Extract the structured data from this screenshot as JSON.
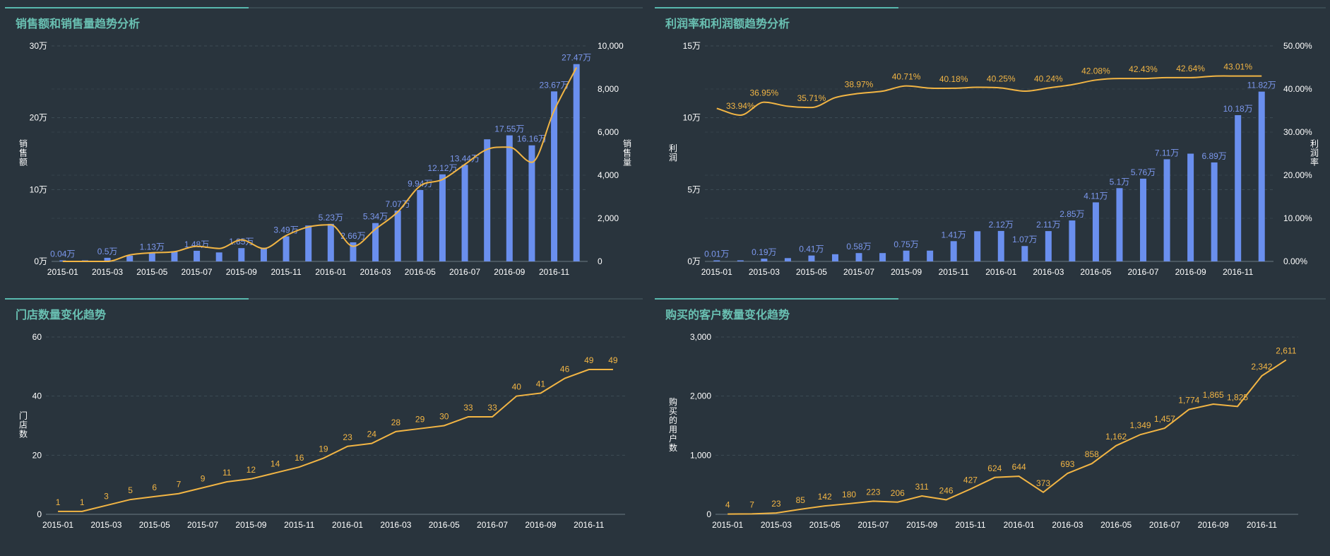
{
  "colors": {
    "bar": "#6a8fee",
    "line": "#f2b544",
    "text": "#ffffff",
    "grid": "#3e4c55",
    "title": "#69c0b2",
    "bar_label": "#7c98ee",
    "line_label": "#f2b544"
  },
  "panels": {
    "p1": {
      "title": "销售额和销售量趋势分析"
    },
    "p2": {
      "title": "利润率和利润额趋势分析"
    },
    "p3": {
      "title": "门店数量变化趋势"
    },
    "p4": {
      "title": "购买的客户数量变化趋势"
    }
  },
  "chart_data": [
    {
      "id": "p1",
      "type": "bar+line",
      "title": "销售额和销售量趋势分析",
      "categories": [
        "2015-01",
        "2015-02",
        "2015-03",
        "2015-04",
        "2015-05",
        "2015-06",
        "2015-07",
        "2015-08",
        "2015-09",
        "2015-10",
        "2015-11",
        "2015-12",
        "2016-01",
        "2016-02",
        "2016-03",
        "2016-04",
        "2016-05",
        "2016-06",
        "2016-07",
        "2016-08",
        "2016-09",
        "2016-10",
        "2016-11",
        "2016-12"
      ],
      "x_tick_labels": [
        "2015-01",
        "2015-03",
        "2015-05",
        "2015-07",
        "2015-09",
        "2015-11",
        "2016-01",
        "2016-03",
        "2016-05",
        "2016-07",
        "2016-09",
        "2016-11"
      ],
      "ylabel": "销售额",
      "y2label": "销售量",
      "ylim": [
        0,
        300000
      ],
      "y2lim": [
        0,
        10000
      ],
      "y_ticks": [
        "0万",
        "10万",
        "20万",
        "30万"
      ],
      "y2_ticks": [
        "0",
        "2,000",
        "4,000",
        "6,000",
        "8,000",
        "10,000"
      ],
      "grid": true,
      "series": [
        {
          "type": "bar",
          "values": [
            400,
            1000,
            5000,
            8000,
            11300,
            14000,
            14800,
            12500,
            18500,
            19000,
            34900,
            50000,
            52300,
            26600,
            53400,
            70700,
            99400,
            121200,
            134400,
            170000,
            175500,
            161600,
            236700,
            274700
          ],
          "labels": [
            "0.04万",
            "",
            "0.5万",
            "",
            "1.13万",
            "",
            "1.48万",
            "",
            "1.85万",
            "",
            "3.49万",
            "",
            "5.23万",
            "2.66万",
            "5.34万",
            "7.07万",
            "9.94万",
            "12.12万",
            "13.44万",
            "",
            "17.55万",
            "16.16万",
            "23.67万",
            "27.47万"
          ]
        },
        {
          "type": "line",
          "values": [
            0,
            0,
            0,
            300,
            400,
            450,
            700,
            600,
            1000,
            600,
            1200,
            1600,
            1700,
            700,
            1500,
            2300,
            3500,
            3800,
            4500,
            5200,
            5300,
            4600,
            7000,
            9000
          ]
        }
      ]
    },
    {
      "id": "p2",
      "type": "bar+line",
      "title": "利润率和利润额趋势分析",
      "categories": [
        "2015-01",
        "2015-02",
        "2015-03",
        "2015-04",
        "2015-05",
        "2015-06",
        "2015-07",
        "2015-08",
        "2015-09",
        "2015-10",
        "2015-11",
        "2015-12",
        "2016-01",
        "2016-02",
        "2016-03",
        "2016-04",
        "2016-05",
        "2016-06",
        "2016-07",
        "2016-08",
        "2016-09",
        "2016-10",
        "2016-11",
        "2016-12"
      ],
      "x_tick_labels": [
        "2015-01",
        "2015-03",
        "2015-05",
        "2015-07",
        "2015-09",
        "2015-11",
        "2016-01",
        "2016-03",
        "2016-05",
        "2016-07",
        "2016-09",
        "2016-11"
      ],
      "ylabel": "利润",
      "y2label": "利润率",
      "ylim": [
        0,
        150000
      ],
      "y2lim": [
        0,
        0.5
      ],
      "y_ticks": [
        "0万",
        "5万",
        "10万",
        "15万"
      ],
      "y2_ticks": [
        "0.00%",
        "10.00%",
        "20.00%",
        "30.00%",
        "40.00%",
        "50.00%"
      ],
      "grid": true,
      "series": [
        {
          "type": "bar",
          "values": [
            100,
            100,
            1900,
            2300,
            4100,
            5000,
            5800,
            5800,
            7500,
            7500,
            14100,
            21000,
            21200,
            10700,
            21100,
            28500,
            41100,
            51000,
            57600,
            71100,
            75000,
            68900,
            101800,
            118200
          ],
          "labels": [
            "0.01万",
            "",
            "0.19万",
            "",
            "0.41万",
            "",
            "0.58万",
            "",
            "0.75万",
            "",
            "1.41万",
            "",
            "2.12万",
            "1.07万",
            "2.11万",
            "2.85万",
            "4.11万",
            "5.1万",
            "5.76万",
            "7.11万",
            "",
            "6.89万",
            "10.18万",
            "11.82万"
          ]
        },
        {
          "type": "line",
          "values": [
            0.355,
            0.3394,
            0.3695,
            0.36,
            0.3571,
            0.38,
            0.3897,
            0.395,
            0.4071,
            0.402,
            0.4018,
            0.404,
            0.4025,
            0.395,
            0.4024,
            0.41,
            0.4208,
            0.4243,
            0.4243,
            0.4264,
            0.4264,
            0.43,
            0.4301,
            0.4301
          ],
          "labels": [
            "",
            "33.94%",
            "36.95%",
            "",
            "35.71%",
            "",
            "38.97%",
            "",
            "40.71%",
            "",
            "40.18%",
            "",
            "40.25%",
            "",
            "40.24%",
            "",
            "42.08%",
            "",
            "42.43%",
            "",
            "42.64%",
            "",
            "43.01%",
            ""
          ]
        }
      ]
    },
    {
      "id": "p3",
      "type": "line",
      "title": "门店数量变化趋势",
      "categories": [
        "2015-01",
        "2015-02",
        "2015-03",
        "2015-04",
        "2015-05",
        "2015-06",
        "2015-07",
        "2015-08",
        "2015-09",
        "2015-10",
        "2015-11",
        "2015-12",
        "2016-01",
        "2016-02",
        "2016-03",
        "2016-04",
        "2016-05",
        "2016-06",
        "2016-07",
        "2016-08",
        "2016-09",
        "2016-10",
        "2016-11",
        "2016-12"
      ],
      "x_tick_labels": [
        "2015-01",
        "2015-03",
        "2015-05",
        "2015-07",
        "2015-09",
        "2015-11",
        "2016-01",
        "2016-03",
        "2016-05",
        "2016-07",
        "2016-09",
        "2016-11"
      ],
      "ylabel": "门店数",
      "ylim": [
        0,
        60
      ],
      "y_ticks": [
        "0",
        "20",
        "40",
        "60"
      ],
      "grid": true,
      "series": [
        {
          "type": "line",
          "values": [
            1,
            1,
            3,
            5,
            6,
            7,
            9,
            11,
            12,
            14,
            16,
            19,
            23,
            24,
            28,
            29,
            30,
            33,
            33,
            40,
            41,
            46,
            49,
            49
          ],
          "labels": [
            "1",
            "1",
            "3",
            "5",
            "6",
            "7",
            "9",
            "11",
            "12",
            "14",
            "16",
            "19",
            "23",
            "24",
            "28",
            "29",
            "30",
            "33",
            "33",
            "40",
            "41",
            "46",
            "49",
            "49"
          ]
        }
      ]
    },
    {
      "id": "p4",
      "type": "line",
      "title": "购买的客户数量变化趋势",
      "categories": [
        "2015-01",
        "2015-02",
        "2015-03",
        "2015-04",
        "2015-05",
        "2015-06",
        "2015-07",
        "2015-08",
        "2015-09",
        "2015-10",
        "2015-11",
        "2015-12",
        "2016-01",
        "2016-02",
        "2016-03",
        "2016-04",
        "2016-05",
        "2016-06",
        "2016-07",
        "2016-08",
        "2016-09",
        "2016-10",
        "2016-11",
        "2016-12"
      ],
      "x_tick_labels": [
        "2015-01",
        "2015-03",
        "2015-05",
        "2015-07",
        "2015-09",
        "2015-11",
        "2016-01",
        "2016-03",
        "2016-05",
        "2016-07",
        "2016-09",
        "2016-11"
      ],
      "ylabel": "购买的用户数",
      "ylim": [
        0,
        3000
      ],
      "y_ticks": [
        "0",
        "1,000",
        "2,000",
        "3,000"
      ],
      "grid": true,
      "series": [
        {
          "type": "line",
          "values": [
            4,
            7,
            23,
            85,
            142,
            180,
            223,
            206,
            311,
            246,
            427,
            624,
            644,
            373,
            693,
            858,
            1162,
            1349,
            1457,
            1774,
            1865,
            1825,
            2342,
            2611
          ],
          "labels": [
            "4",
            "7",
            "23",
            "85",
            "142",
            "180",
            "223",
            "206",
            "311",
            "246",
            "427",
            "624",
            "644",
            "373",
            "693",
            "858",
            "1,162",
            "1,349",
            "1,457",
            "1,774",
            "1,865",
            "1,825",
            "2,342",
            "2,611"
          ]
        }
      ]
    }
  ]
}
